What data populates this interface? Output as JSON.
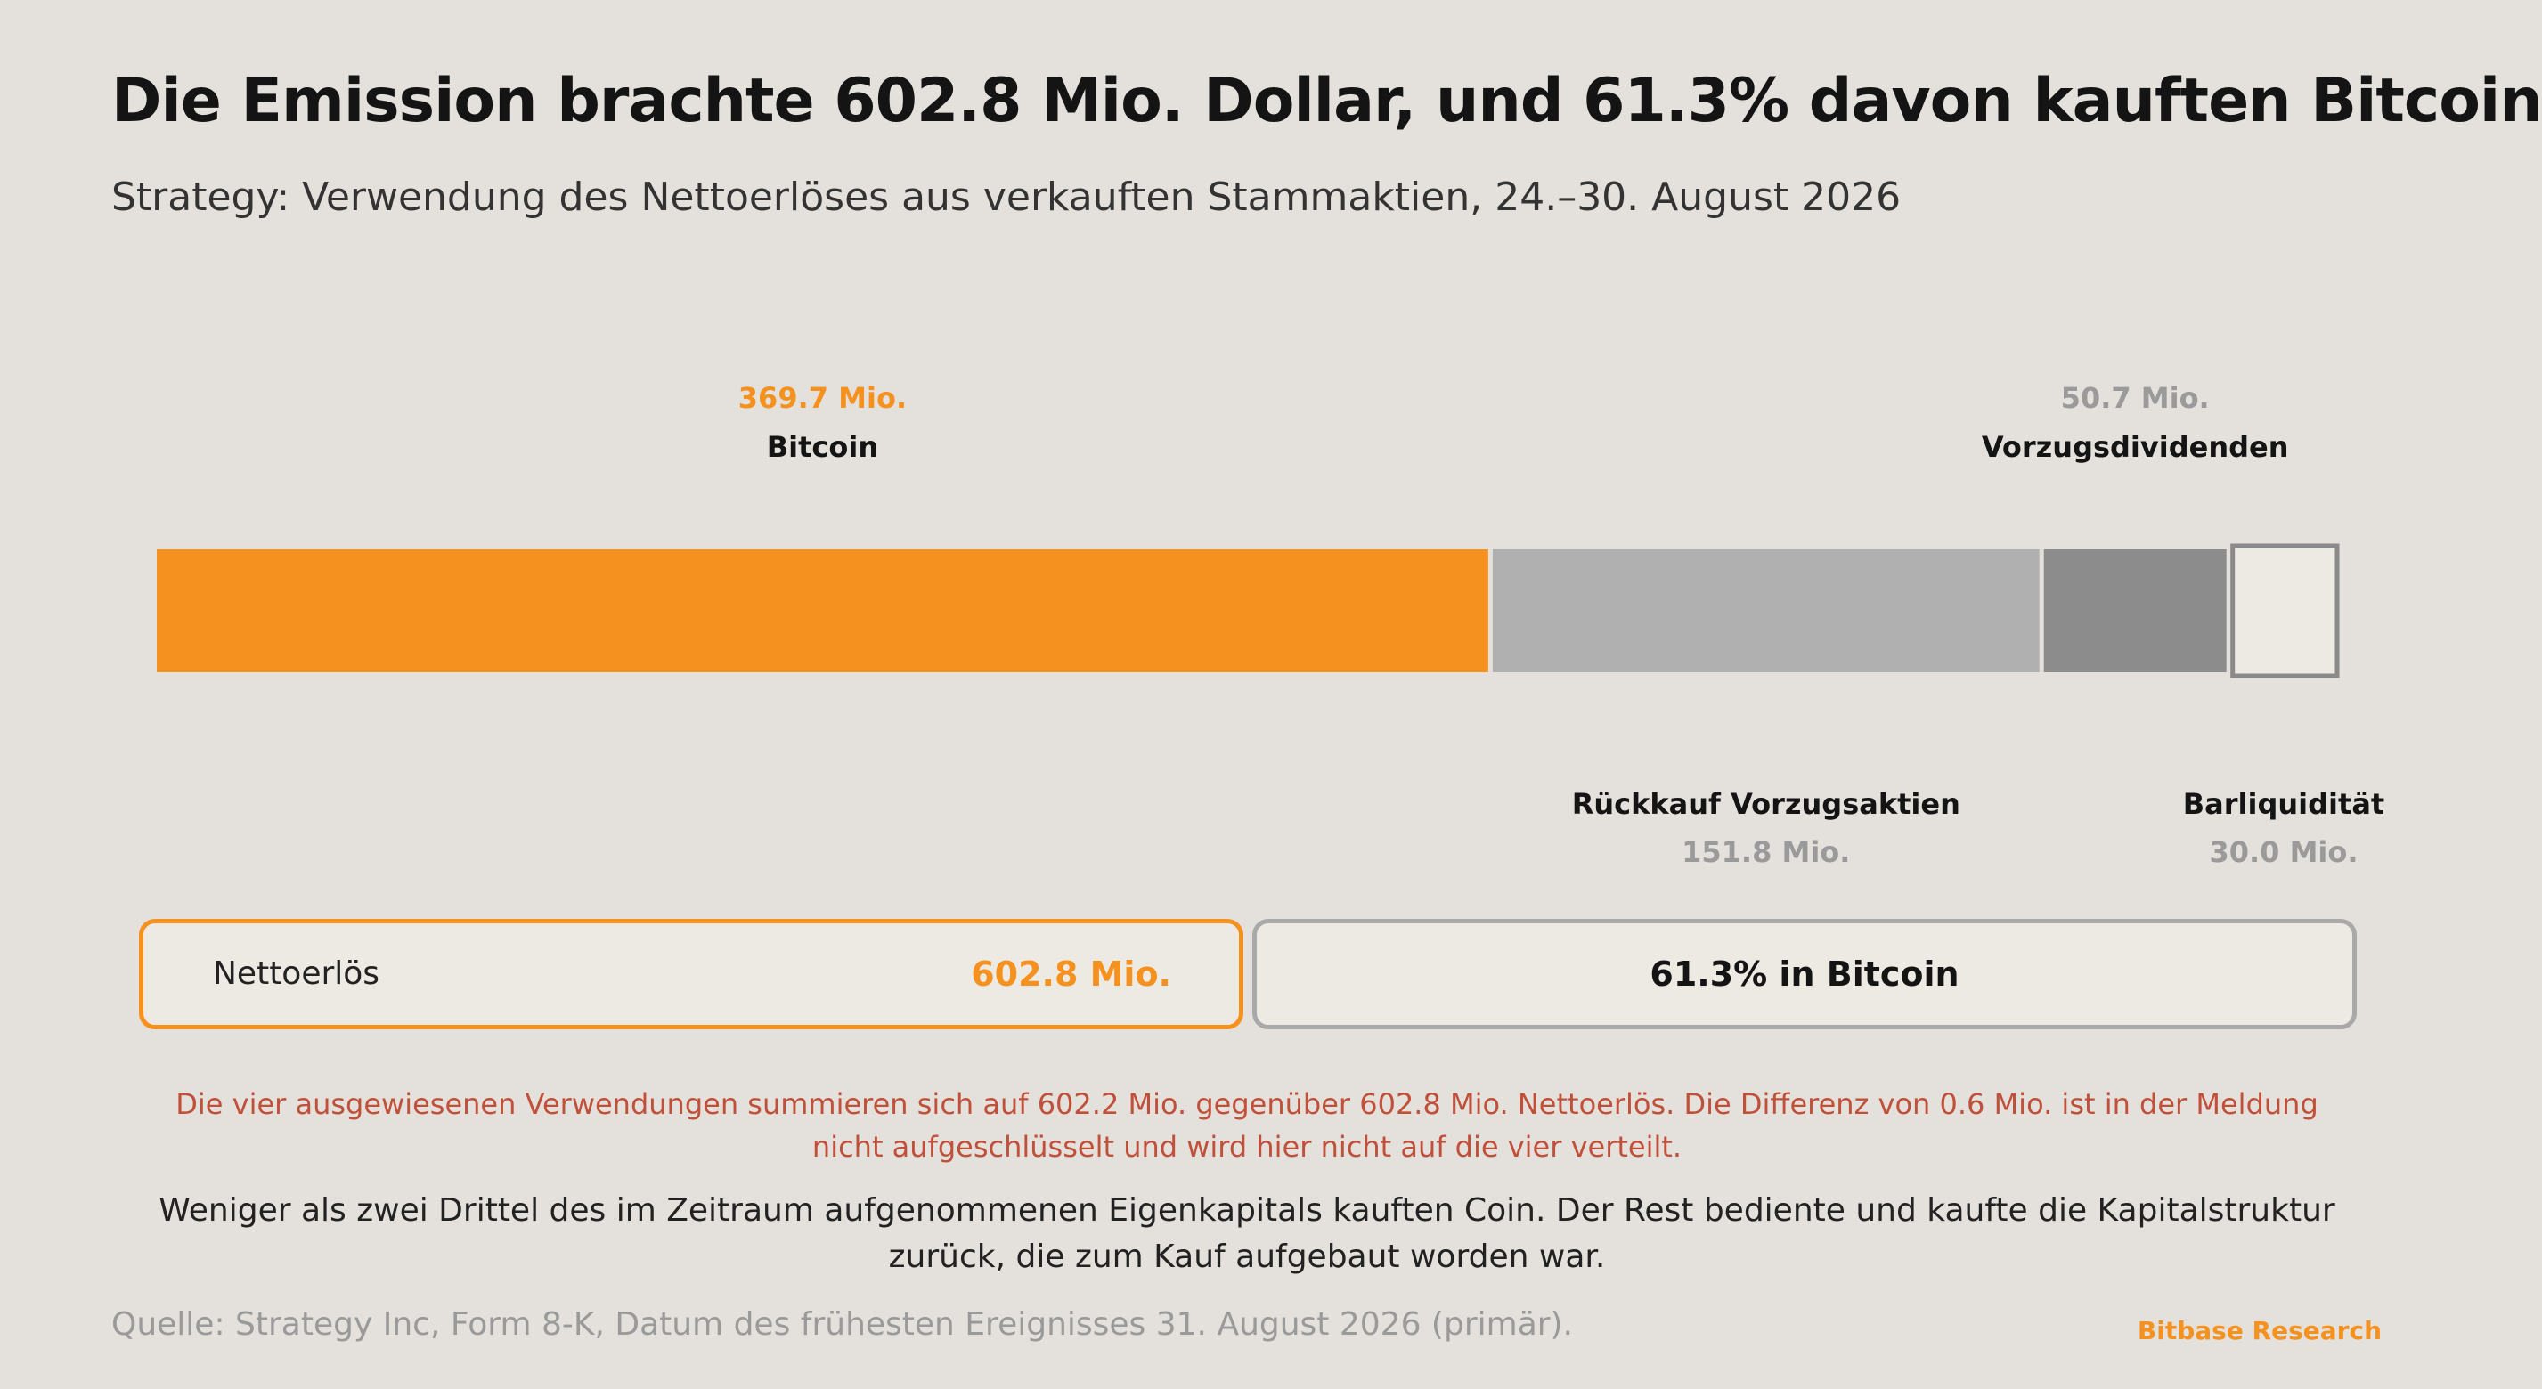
{
  "header": {
    "title": "Die Emission brachte 602.8 Mio. Dollar, und 61.3% davon kauften Bitcoin",
    "subtitle": "Strategy: Verwendung des Nettoerlöses aus verkauften Stammaktien, 24.–30. August 2026"
  },
  "chart_data": {
    "type": "bar",
    "orientation": "horizontal-stacked",
    "unit": "Mio.",
    "segments": [
      {
        "name": "Bitcoin",
        "value": 369.7,
        "value_label": "369.7 Mio.",
        "label_position": "top",
        "color": "#f5911e",
        "value_color": "#f5911e"
      },
      {
        "name": "Rückkauf Vorzugsaktien",
        "value": 151.8,
        "value_label": "151.8 Mio.",
        "label_position": "bottom",
        "color": "#b0b0b0",
        "value_color": "#9a9a9a"
      },
      {
        "name": "Vorzugsdividenden",
        "value": 50.7,
        "value_label": "50.7 Mio.",
        "label_position": "top",
        "color": "#8c8c8c",
        "value_color": "#9a9a9a"
      },
      {
        "name": "Barliquidität",
        "value": 30.0,
        "value_label": "30.0 Mio.",
        "label_position": "bottom",
        "color": "#ede9e3",
        "value_color": "#9a9a9a",
        "outlined": true
      }
    ],
    "total": 602.8
  },
  "summary_boxes": {
    "net_label": "Nettoerlös",
    "net_value": "602.8 Mio.",
    "share_text": "61.3% in Bitcoin"
  },
  "note": "Die vier ausgewiesenen Verwendungen summieren sich auf 602.2 Mio. gegenüber 602.8 Mio. Nettoerlös. Die Differenz von 0.6 Mio. ist in der Meldung nicht aufgeschlüsselt und wird hier nicht auf die vier verteilt.",
  "summary": "Weniger als zwei Drittel des im Zeitraum aufgenommenen Eigenkapitals kauften Coin. Der Rest bediente und kaufte die Kapitalstruktur zurück, die zum Kauf aufgebaut worden war.",
  "footer": {
    "source": "Quelle: Strategy Inc, Form 8-K, Datum des frühesten Ereignisses 31. August 2026 (primär).",
    "brand": "Bitbase Research"
  },
  "colors": {
    "background": "#e4e0db",
    "accent": "#f5911e",
    "note": "#c0503a"
  }
}
